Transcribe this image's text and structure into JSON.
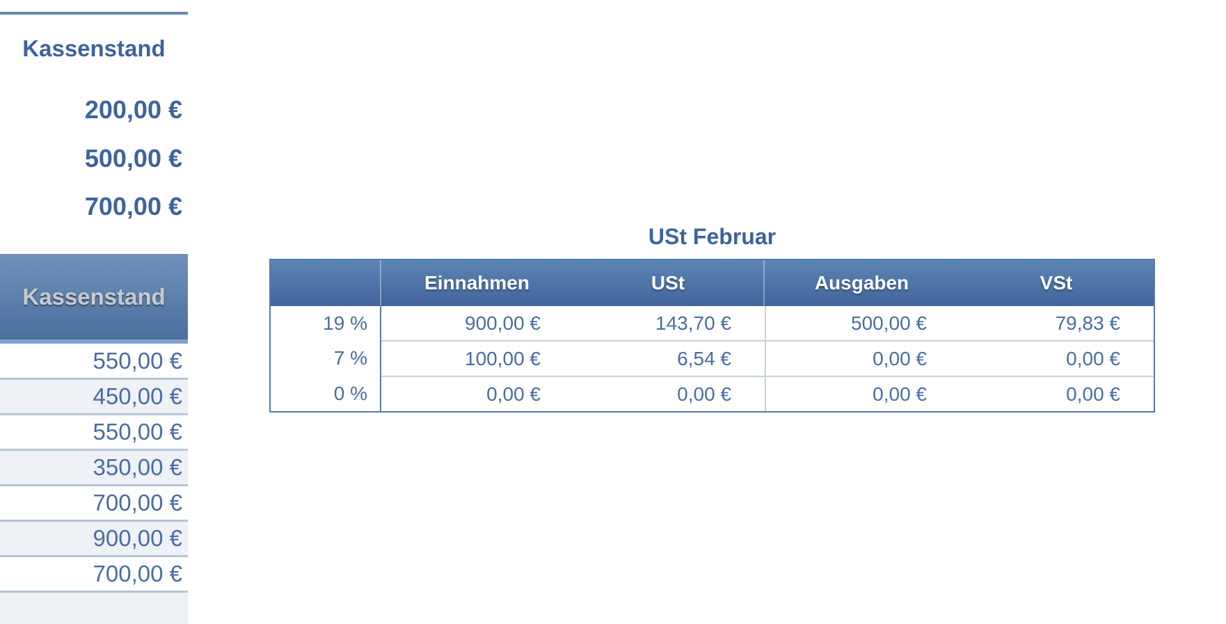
{
  "left_panel": {
    "title": "Kassenstand",
    "summary_values": [
      "200,00 €",
      "500,00 €",
      "700,00 €"
    ],
    "header_bar_label": "Kassenstand",
    "rows": [
      "550,00 €",
      "450,00 €",
      "550,00 €",
      "350,00 €",
      "700,00 €",
      "900,00 €",
      "700,00 €",
      ""
    ]
  },
  "ust_table": {
    "title": "USt Februar",
    "columns": [
      "",
      "Einnahmen",
      "USt",
      "Ausgaben",
      "VSt"
    ],
    "rows": [
      {
        "rate": "19 %",
        "einnahmen": "900,00 €",
        "ust": "143,70 €",
        "ausgaben": "500,00 €",
        "vst": "79,83 €"
      },
      {
        "rate": "7 %",
        "einnahmen": "100,00 €",
        "ust": "6,54 €",
        "ausgaben": "0,00 €",
        "vst": "0,00 €"
      },
      {
        "rate": "0 %",
        "einnahmen": "0,00 €",
        "ust": "0,00 €",
        "ausgaben": "0,00 €",
        "vst": "0,00 €"
      }
    ]
  },
  "colors": {
    "accent_blue_text": "#3e639e",
    "value_blue_text": "#4a6ca4",
    "header_gradient_top": "#5d85b4",
    "header_gradient_bottom": "#41649b",
    "bar_gradient_top": "#7191ba",
    "bar_gradient_bottom": "#4b6f9f",
    "bar_highlight": "#7fa3cc",
    "table_border": "#567aa9",
    "row_separator_left": "#b5c5d7",
    "row_separator_right": "#c5d2e0",
    "alt_row_bg": "#eef1f5",
    "top_rule": "#6688b3",
    "engraved_label_gray": "#c7cacf"
  }
}
